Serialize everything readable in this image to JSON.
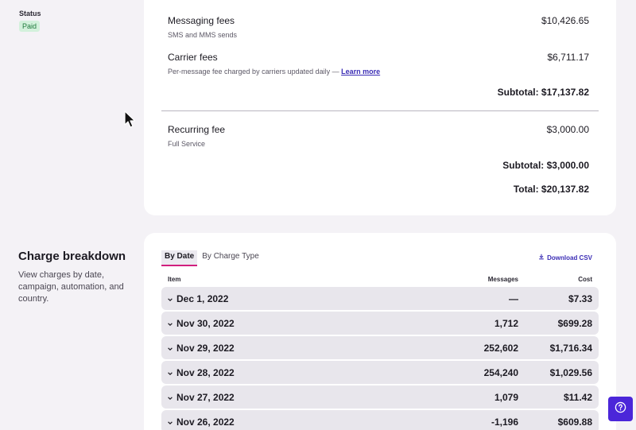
{
  "status": {
    "label": "Status",
    "badge": "Paid"
  },
  "fees": [
    {
      "title": "Messaging fees",
      "desc": "SMS and MMS sends",
      "amount": "$10,426.65"
    },
    {
      "title": "Carrier fees",
      "desc": "Per-message fee charged by carriers updated daily — ",
      "link": "Learn more",
      "amount": "$6,711.17"
    }
  ],
  "subtotal_1": "Subtotal: $17,137.82",
  "recurring": {
    "title": "Recurring fee",
    "desc": "Full Service",
    "amount": "$3,000.00"
  },
  "subtotal_2": "Subtotal: $3,000.00",
  "total": "Total: $20,137.82",
  "breakdown": {
    "title": "Charge breakdown",
    "description": "View charges by date, campaign, automation, and country.",
    "tabs": [
      "By Date",
      "By Charge Type"
    ],
    "download_label": "Download CSV",
    "columns": {
      "item": "Item",
      "messages": "Messages",
      "cost": "Cost"
    },
    "rows": [
      {
        "date": "Dec 1, 2022",
        "messages": "—",
        "cost": "$7.33"
      },
      {
        "date": "Nov 30, 2022",
        "messages": "1,712",
        "cost": "$699.28"
      },
      {
        "date": "Nov 29, 2022",
        "messages": "252,602",
        "cost": "$1,716.34"
      },
      {
        "date": "Nov 28, 2022",
        "messages": "254,240",
        "cost": "$1,029.56"
      },
      {
        "date": "Nov 27, 2022",
        "messages": "1,079",
        "cost": "$11.42"
      },
      {
        "date": "Nov 26, 2022",
        "messages": "-1,196",
        "cost": "$609.88"
      }
    ]
  },
  "colors": {
    "accent": "#4b26d9",
    "tab_underline": "#d11f7e",
    "paid_badge": "#d3f1dc"
  },
  "icons": {
    "row_toggle": "chevron-down-icon",
    "download": "download-icon",
    "help": "help-icon"
  }
}
